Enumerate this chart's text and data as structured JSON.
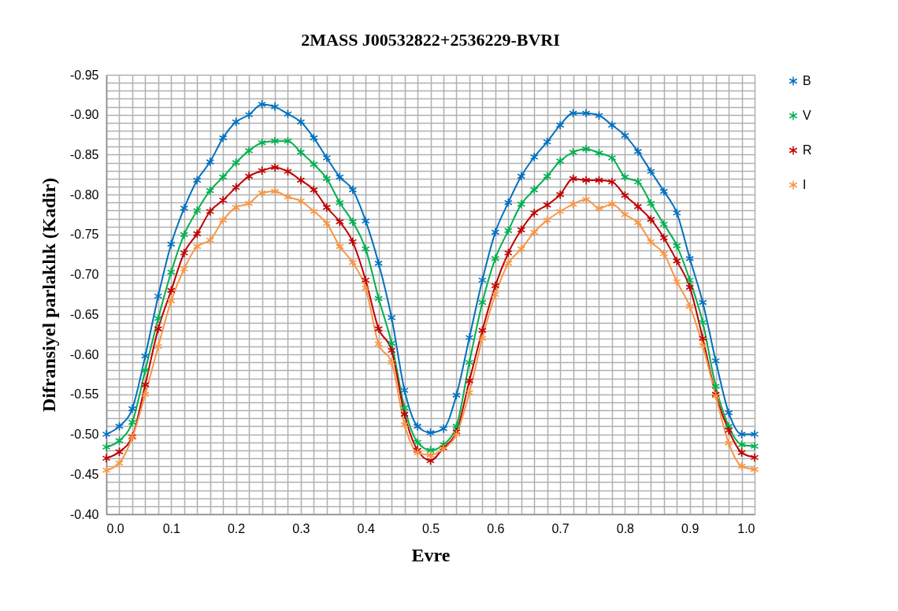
{
  "chart_data": {
    "type": "line",
    "title": "2MASS J00532822+2536229-BVRI",
    "xlabel": "Evre",
    "ylabel": "Difransiyel parlaklık (Kadir)",
    "x": [
      0,
      0.02,
      0.04,
      0.06,
      0.08,
      0.1,
      0.12,
      0.14,
      0.16,
      0.18,
      0.2,
      0.22,
      0.24,
      0.26,
      0.28,
      0.3,
      0.32,
      0.34,
      0.36,
      0.38,
      0.4,
      0.42,
      0.44,
      0.46,
      0.48,
      0.5,
      0.52,
      0.54,
      0.56,
      0.58,
      0.6,
      0.62,
      0.64,
      0.66,
      0.68,
      0.7,
      0.72,
      0.74,
      0.76,
      0.78,
      0.8,
      0.82,
      0.84,
      0.86,
      0.88,
      0.9,
      0.92,
      0.94,
      0.96,
      0.98,
      1
    ],
    "series": [
      {
        "name": "B",
        "color": "#0070c0",
        "values": [
          -0.5,
          -0.51,
          -0.532,
          -0.598,
          -0.673,
          -0.738,
          -0.783,
          -0.818,
          -0.841,
          -0.871,
          -0.891,
          -0.9,
          -0.913,
          -0.91,
          -0.901,
          -0.891,
          -0.871,
          -0.846,
          -0.822,
          -0.806,
          -0.767,
          -0.714,
          -0.646,
          -0.555,
          -0.51,
          -0.502,
          -0.507,
          -0.549,
          -0.621,
          -0.693,
          -0.753,
          -0.79,
          -0.823,
          -0.847,
          -0.866,
          -0.887,
          -0.902,
          -0.902,
          -0.899,
          -0.887,
          -0.874,
          -0.854,
          -0.829,
          -0.804,
          -0.777,
          -0.72,
          -0.665,
          -0.592,
          -0.527,
          -0.5,
          -0.5
        ]
      },
      {
        "name": "V",
        "color": "#00b050",
        "values": [
          -0.484,
          -0.492,
          -0.515,
          -0.58,
          -0.645,
          -0.703,
          -0.75,
          -0.78,
          -0.805,
          -0.822,
          -0.84,
          -0.855,
          -0.865,
          -0.867,
          -0.867,
          -0.853,
          -0.838,
          -0.82,
          -0.79,
          -0.766,
          -0.732,
          -0.67,
          -0.614,
          -0.533,
          -0.49,
          -0.48,
          -0.487,
          -0.51,
          -0.59,
          -0.665,
          -0.72,
          -0.755,
          -0.788,
          -0.806,
          -0.823,
          -0.842,
          -0.853,
          -0.857,
          -0.852,
          -0.846,
          -0.822,
          -0.816,
          -0.789,
          -0.763,
          -0.736,
          -0.693,
          -0.64,
          -0.56,
          -0.51,
          -0.487,
          -0.485
        ]
      },
      {
        "name": "R",
        "color": "#c00000",
        "values": [
          -0.47,
          -0.478,
          -0.497,
          -0.562,
          -0.632,
          -0.68,
          -0.727,
          -0.751,
          -0.779,
          -0.793,
          -0.809,
          -0.823,
          -0.83,
          -0.834,
          -0.829,
          -0.818,
          -0.806,
          -0.784,
          -0.766,
          -0.741,
          -0.693,
          -0.632,
          -0.605,
          -0.525,
          -0.48,
          -0.467,
          -0.483,
          -0.503,
          -0.567,
          -0.63,
          -0.686,
          -0.727,
          -0.756,
          -0.777,
          -0.787,
          -0.8,
          -0.82,
          -0.818,
          -0.818,
          -0.816,
          -0.799,
          -0.785,
          -0.769,
          -0.746,
          -0.717,
          -0.684,
          -0.62,
          -0.55,
          -0.505,
          -0.477,
          -0.471
        ]
      },
      {
        "name": "I",
        "color": "#f79646",
        "values": [
          -0.455,
          -0.464,
          -0.496,
          -0.55,
          -0.61,
          -0.667,
          -0.707,
          -0.735,
          -0.743,
          -0.768,
          -0.784,
          -0.789,
          -0.802,
          -0.804,
          -0.797,
          -0.792,
          -0.779,
          -0.764,
          -0.735,
          -0.715,
          -0.683,
          -0.613,
          -0.59,
          -0.512,
          -0.477,
          -0.474,
          -0.482,
          -0.5,
          -0.552,
          -0.62,
          -0.675,
          -0.714,
          -0.732,
          -0.753,
          -0.768,
          -0.779,
          -0.788,
          -0.794,
          -0.783,
          -0.788,
          -0.775,
          -0.765,
          -0.741,
          -0.726,
          -0.691,
          -0.66,
          -0.611,
          -0.548,
          -0.489,
          -0.46,
          -0.456
        ]
      }
    ],
    "xlim": [
      0,
      1
    ],
    "xticks": [
      {
        "value": 0,
        "label": "0.0"
      },
      {
        "value": 0.02,
        "label": null
      },
      {
        "value": 0.04,
        "label": null
      },
      {
        "value": 0.06,
        "label": null
      },
      {
        "value": 0.08,
        "label": null
      },
      {
        "value": 0.1,
        "label": "0.1"
      },
      {
        "value": 0.12,
        "label": null
      },
      {
        "value": 0.14,
        "label": null
      },
      {
        "value": 0.16,
        "label": null
      },
      {
        "value": 0.18,
        "label": null
      },
      {
        "value": 0.2,
        "label": "0.2"
      },
      {
        "value": 0.22,
        "label": null
      },
      {
        "value": 0.24,
        "label": null
      },
      {
        "value": 0.26,
        "label": null
      },
      {
        "value": 0.28,
        "label": null
      },
      {
        "value": 0.3,
        "label": "0.3"
      },
      {
        "value": 0.32,
        "label": null
      },
      {
        "value": 0.34,
        "label": null
      },
      {
        "value": 0.36,
        "label": null
      },
      {
        "value": 0.38,
        "label": null
      },
      {
        "value": 0.4,
        "label": "0.4"
      },
      {
        "value": 0.42,
        "label": null
      },
      {
        "value": 0.44,
        "label": null
      },
      {
        "value": 0.46,
        "label": null
      },
      {
        "value": 0.48,
        "label": null
      },
      {
        "value": 0.5,
        "label": "0.5"
      },
      {
        "value": 0.52,
        "label": null
      },
      {
        "value": 0.54,
        "label": null
      },
      {
        "value": 0.56,
        "label": null
      },
      {
        "value": 0.58,
        "label": null
      },
      {
        "value": 0.6,
        "label": "0.6"
      },
      {
        "value": 0.62,
        "label": null
      },
      {
        "value": 0.64,
        "label": null
      },
      {
        "value": 0.66,
        "label": null
      },
      {
        "value": 0.68,
        "label": null
      },
      {
        "value": 0.7,
        "label": "0.7"
      },
      {
        "value": 0.72,
        "label": null
      },
      {
        "value": 0.74,
        "label": null
      },
      {
        "value": 0.76,
        "label": null
      },
      {
        "value": 0.78,
        "label": null
      },
      {
        "value": 0.8,
        "label": "0.8"
      },
      {
        "value": 0.82,
        "label": null
      },
      {
        "value": 0.84,
        "label": null
      },
      {
        "value": 0.86,
        "label": null
      },
      {
        "value": 0.88,
        "label": null
      },
      {
        "value": 0.9,
        "label": "0.9"
      },
      {
        "value": 0.92,
        "label": null
      },
      {
        "value": 0.94,
        "label": null
      },
      {
        "value": 0.96,
        "label": null
      },
      {
        "value": 0.98,
        "label": null
      },
      {
        "value": 1,
        "label": "1.0"
      }
    ],
    "ylim": [
      -0.4,
      -0.95
    ],
    "yticks": [
      {
        "value": -0.95,
        "label": "-0.95"
      },
      {
        "value": -0.94,
        "label": null
      },
      {
        "value": -0.93,
        "label": null
      },
      {
        "value": -0.92,
        "label": null
      },
      {
        "value": -0.91,
        "label": null
      },
      {
        "value": -0.9,
        "label": "-0.90"
      },
      {
        "value": -0.89,
        "label": null
      },
      {
        "value": -0.88,
        "label": null
      },
      {
        "value": -0.87,
        "label": null
      },
      {
        "value": -0.86,
        "label": null
      },
      {
        "value": -0.85,
        "label": "-0.85"
      },
      {
        "value": -0.84,
        "label": null
      },
      {
        "value": -0.83,
        "label": null
      },
      {
        "value": -0.82,
        "label": null
      },
      {
        "value": -0.81,
        "label": null
      },
      {
        "value": -0.8,
        "label": "-0.80"
      },
      {
        "value": -0.79,
        "label": null
      },
      {
        "value": -0.78,
        "label": null
      },
      {
        "value": -0.77,
        "label": null
      },
      {
        "value": -0.76,
        "label": null
      },
      {
        "value": -0.75,
        "label": "-0.75"
      },
      {
        "value": -0.74,
        "label": null
      },
      {
        "value": -0.73,
        "label": null
      },
      {
        "value": -0.72,
        "label": null
      },
      {
        "value": -0.71,
        "label": null
      },
      {
        "value": -0.7,
        "label": "-0.70"
      },
      {
        "value": -0.69,
        "label": null
      },
      {
        "value": -0.68,
        "label": null
      },
      {
        "value": -0.67,
        "label": null
      },
      {
        "value": -0.66,
        "label": null
      },
      {
        "value": -0.65,
        "label": "-0.65"
      },
      {
        "value": -0.64,
        "label": null
      },
      {
        "value": -0.63,
        "label": null
      },
      {
        "value": -0.62,
        "label": null
      },
      {
        "value": -0.61,
        "label": null
      },
      {
        "value": -0.6,
        "label": "-0.60"
      },
      {
        "value": -0.59,
        "label": null
      },
      {
        "value": -0.58,
        "label": null
      },
      {
        "value": -0.57,
        "label": null
      },
      {
        "value": -0.56,
        "label": null
      },
      {
        "value": -0.55,
        "label": "-0.55"
      },
      {
        "value": -0.54,
        "label": null
      },
      {
        "value": -0.53,
        "label": null
      },
      {
        "value": -0.52,
        "label": null
      },
      {
        "value": -0.51,
        "label": null
      },
      {
        "value": -0.5,
        "label": "-0.50"
      },
      {
        "value": -0.49,
        "label": null
      },
      {
        "value": -0.48,
        "label": null
      },
      {
        "value": -0.47,
        "label": null
      },
      {
        "value": -0.46,
        "label": null
      },
      {
        "value": -0.45,
        "label": "-0.45"
      },
      {
        "value": -0.44,
        "label": null
      },
      {
        "value": -0.43,
        "label": null
      },
      {
        "value": -0.42,
        "label": null
      },
      {
        "value": -0.41,
        "label": null
      },
      {
        "value": -0.4,
        "label": "-0.40"
      }
    ],
    "grid": true,
    "legend": "right",
    "marker": "cross",
    "line_style": "solid"
  }
}
